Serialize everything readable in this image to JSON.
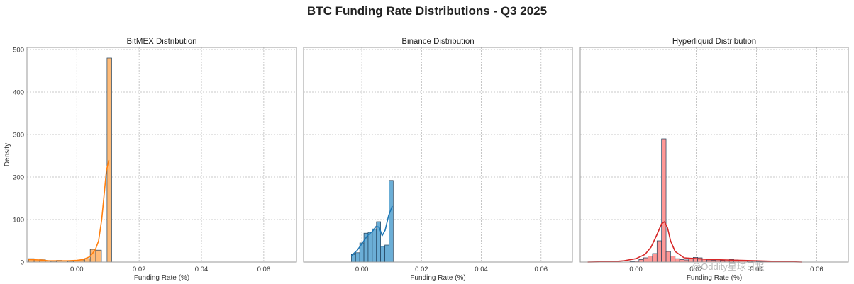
{
  "figure": {
    "title": "BTC Funding Rate Distributions - Q3 2025",
    "watermark": "@Oddity星球日报"
  },
  "chart_data": [
    {
      "type": "histogram",
      "title": "BitMEX Distribution",
      "xlabel": "Funding Rate (%)",
      "ylabel": "Density",
      "xlim": [
        -0.016,
        0.0705
      ],
      "ylim": [
        0,
        505
      ],
      "xticks": [
        0.0,
        0.02,
        0.04,
        0.06
      ],
      "xtick_labels": [
        "0.00",
        "0.02",
        "0.04",
        "0.06"
      ],
      "yticks": [
        0,
        100,
        200,
        300,
        400,
        500
      ],
      "ytick_labels": [
        "0",
        "100",
        "200",
        "300",
        "400",
        "500"
      ],
      "grid": true,
      "color": "#ff7f0e",
      "fill": "#ffbb78",
      "bins": [
        {
          "x0": -0.0155,
          "x1": -0.0137,
          "density": 8
        },
        {
          "x0": -0.0137,
          "x1": -0.0119,
          "density": 5
        },
        {
          "x0": -0.0119,
          "x1": -0.0101,
          "density": 7
        },
        {
          "x0": -0.0101,
          "x1": -0.0083,
          "density": 3
        },
        {
          "x0": -0.0083,
          "x1": -0.0065,
          "density": 2
        },
        {
          "x0": -0.0065,
          "x1": -0.0047,
          "density": 4
        },
        {
          "x0": -0.0047,
          "x1": -0.0029,
          "density": 3
        },
        {
          "x0": -0.0029,
          "x1": -0.0011,
          "density": 2
        },
        {
          "x0": -0.0011,
          "x1": 0.0007,
          "density": 3
        },
        {
          "x0": 0.0007,
          "x1": 0.0025,
          "density": 5
        },
        {
          "x0": 0.0025,
          "x1": 0.0043,
          "density": 8
        },
        {
          "x0": 0.0043,
          "x1": 0.0061,
          "density": 30
        },
        {
          "x0": 0.0061,
          "x1": 0.0079,
          "density": 28
        },
        {
          "x0": 0.0079,
          "x1": 0.0097,
          "density": 0
        },
        {
          "x0": 0.0097,
          "x1": 0.0112,
          "density": 480
        }
      ],
      "kde": {
        "x": [
          -0.0155,
          -0.012,
          -0.009,
          -0.006,
          -0.003,
          0.0,
          0.002,
          0.004,
          0.005,
          0.006,
          0.007,
          0.008,
          0.0088,
          0.0095,
          0.0103
        ],
        "y": [
          6,
          5,
          3,
          3,
          3,
          4,
          6,
          12,
          20,
          30,
          50,
          100,
          160,
          215,
          240
        ]
      }
    },
    {
      "type": "histogram",
      "title": "Binance Distribution",
      "xlabel": "Funding Rate (%)",
      "ylabel": "",
      "xlim": [
        -0.0195,
        0.0705
      ],
      "ylim": [
        0,
        505
      ],
      "xticks": [
        0.0,
        0.02,
        0.04,
        0.06
      ],
      "xtick_labels": [
        "0.00",
        "0.02",
        "0.04",
        "0.06"
      ],
      "yticks": [
        0,
        100,
        200,
        300,
        400,
        500
      ],
      "ytick_labels": [],
      "grid": true,
      "color": "#1f77b4",
      "fill": "#6baed6",
      "bins": [
        {
          "x0": -0.0035,
          "x1": -0.0021,
          "density": 18
        },
        {
          "x0": -0.0021,
          "x1": -0.0007,
          "density": 22
        },
        {
          "x0": -0.0007,
          "x1": 0.0007,
          "density": 45
        },
        {
          "x0": 0.0007,
          "x1": 0.0021,
          "density": 68
        },
        {
          "x0": 0.0021,
          "x1": 0.0035,
          "density": 70
        },
        {
          "x0": 0.0035,
          "x1": 0.0049,
          "density": 78
        },
        {
          "x0": 0.0049,
          "x1": 0.0063,
          "density": 95
        },
        {
          "x0": 0.0063,
          "x1": 0.0077,
          "density": 37
        },
        {
          "x0": 0.0077,
          "x1": 0.0091,
          "density": 40
        },
        {
          "x0": 0.0091,
          "x1": 0.0105,
          "density": 192
        }
      ],
      "kde": {
        "x": [
          -0.0035,
          -0.0015,
          0.0005,
          0.002,
          0.0035,
          0.0048,
          0.0058,
          0.0068,
          0.0078,
          0.009,
          0.0102
        ],
        "y": [
          15,
          28,
          48,
          63,
          72,
          84,
          82,
          62,
          75,
          110,
          132
        ]
      }
    },
    {
      "type": "histogram",
      "title": "Hyperliquid Distribution",
      "xlabel": "Funding Rate (%)",
      "ylabel": "",
      "xlim": [
        -0.0185,
        0.0705
      ],
      "ylim": [
        0,
        505
      ],
      "xticks": [
        0.0,
        0.02,
        0.04,
        0.06
      ],
      "xtick_labels": [
        "0.00",
        "0.02",
        "0.04",
        "0.06"
      ],
      "yticks": [
        0,
        100,
        200,
        300,
        400,
        500
      ],
      "ytick_labels": [],
      "grid": true,
      "color": "#d62728",
      "fill": "#ff9896",
      "bins": [
        {
          "x0": -0.002,
          "x1": -0.0005,
          "density": 1
        },
        {
          "x0": -0.0005,
          "x1": 0.001,
          "density": 2
        },
        {
          "x0": 0.001,
          "x1": 0.0025,
          "density": 6
        },
        {
          "x0": 0.0025,
          "x1": 0.004,
          "density": 10
        },
        {
          "x0": 0.004,
          "x1": 0.0055,
          "density": 14
        },
        {
          "x0": 0.0055,
          "x1": 0.007,
          "density": 20
        },
        {
          "x0": 0.007,
          "x1": 0.0085,
          "density": 50
        },
        {
          "x0": 0.0085,
          "x1": 0.01,
          "density": 290
        },
        {
          "x0": 0.01,
          "x1": 0.0115,
          "density": 25
        },
        {
          "x0": 0.0115,
          "x1": 0.013,
          "density": 14
        },
        {
          "x0": 0.013,
          "x1": 0.0145,
          "density": 8
        },
        {
          "x0": 0.0145,
          "x1": 0.016,
          "density": 6
        },
        {
          "x0": 0.016,
          "x1": 0.0175,
          "density": 5
        },
        {
          "x0": 0.0175,
          "x1": 0.019,
          "density": 9
        },
        {
          "x0": 0.019,
          "x1": 0.0205,
          "density": 11
        },
        {
          "x0": 0.0205,
          "x1": 0.022,
          "density": 10
        },
        {
          "x0": 0.022,
          "x1": 0.0235,
          "density": 7
        },
        {
          "x0": 0.0235,
          "x1": 0.025,
          "density": 5
        },
        {
          "x0": 0.025,
          "x1": 0.0265,
          "density": 4
        },
        {
          "x0": 0.0265,
          "x1": 0.028,
          "density": 3
        },
        {
          "x0": 0.028,
          "x1": 0.0295,
          "density": 4
        },
        {
          "x0": 0.0295,
          "x1": 0.031,
          "density": 3
        },
        {
          "x0": 0.031,
          "x1": 0.0325,
          "density": 6
        },
        {
          "x0": 0.0325,
          "x1": 0.034,
          "density": 5
        },
        {
          "x0": 0.034,
          "x1": 0.0355,
          "density": 4
        },
        {
          "x0": 0.0355,
          "x1": 0.037,
          "density": 3
        },
        {
          "x0": 0.037,
          "x1": 0.0385,
          "density": 2
        },
        {
          "x0": 0.0385,
          "x1": 0.04,
          "density": 2
        },
        {
          "x0": 0.04,
          "x1": 0.0415,
          "density": 1
        },
        {
          "x0": 0.0415,
          "x1": 0.043,
          "density": 1
        },
        {
          "x0": 0.043,
          "x1": 0.0445,
          "density": 1
        }
      ],
      "kde": {
        "x": [
          -0.016,
          -0.008,
          -0.004,
          0.0,
          0.003,
          0.005,
          0.007,
          0.0085,
          0.0095,
          0.0105,
          0.0115,
          0.013,
          0.016,
          0.02,
          0.025,
          0.03,
          0.035,
          0.04,
          0.045,
          0.05,
          0.055
        ],
        "y": [
          0,
          1,
          3,
          8,
          18,
          35,
          65,
          90,
          95,
          80,
          50,
          25,
          10,
          8,
          6,
          5,
          4,
          3,
          2,
          1,
          0
        ]
      }
    }
  ]
}
